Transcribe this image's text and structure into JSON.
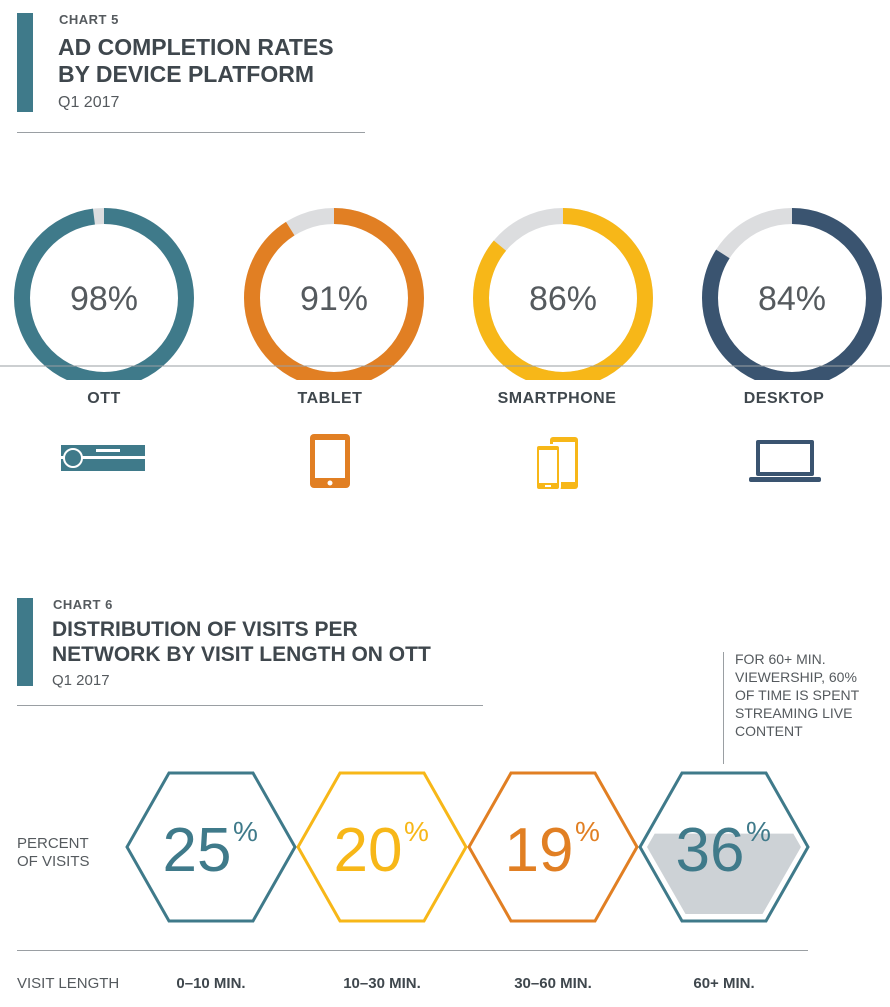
{
  "chart5": {
    "label": "CHART 5",
    "title_line1": "AD COMPLETION RATES",
    "title_line2": "BY DEVICE PLATFORM",
    "subtitle": "Q1 2017"
  },
  "chart6": {
    "label": "CHART 6",
    "title_line1": "DISTRIBUTION OF VISITS PER",
    "title_line2": "NETWORK BY VISIT LENGTH ON OTT",
    "subtitle": "Q1 2017",
    "row_label_line1": "PERCENT",
    "row_label_line2": "OF VISITS",
    "axis_label": "VISIT LENGTH",
    "note_lines": [
      "FOR 60+ MIN.",
      "VIEWERSHIP, 60%",
      "OF TIME IS SPENT",
      "STREAMING LIVE",
      "CONTENT"
    ]
  },
  "colors": {
    "teal": "#3f7a8a",
    "orange": "#e17f23",
    "yellow": "#f7b718",
    "navy": "#3a5470",
    "ring_track": "#dcdddf",
    "highlight_fill": "#cdd2d6"
  },
  "chart_data": [
    {
      "type": "donut",
      "title": "AD COMPLETION RATES BY DEVICE PLATFORM",
      "subtitle": "Q1 2017",
      "categories": [
        "OTT",
        "TABLET",
        "SMARTPHONE",
        "DESKTOP"
      ],
      "values": [
        98,
        91,
        86,
        84
      ],
      "value_labels": [
        "98%",
        "91%",
        "86%",
        "84%"
      ],
      "icons": [
        "set-top-box-icon",
        "tablet-icon",
        "smartphone-icon",
        "laptop-icon"
      ],
      "unit": "%"
    },
    {
      "type": "bar",
      "title": "DISTRIBUTION OF VISITS PER NETWORK BY VISIT LENGTH ON OTT",
      "subtitle": "Q1 2017",
      "categories": [
        "0–10 MIN.",
        "10–30 MIN.",
        "30–60 MIN.",
        "60+ MIN."
      ],
      "values": [
        25,
        20,
        19,
        36
      ],
      "value_numbers": [
        "25",
        "20",
        "19",
        "36"
      ],
      "unit_symbol": "%",
      "xlabel": "VISIT LENGTH",
      "ylabel": "PERCENT OF VISITS",
      "highlight_category": "60+ MIN.",
      "highlight_fill_level": 0.6
    }
  ]
}
